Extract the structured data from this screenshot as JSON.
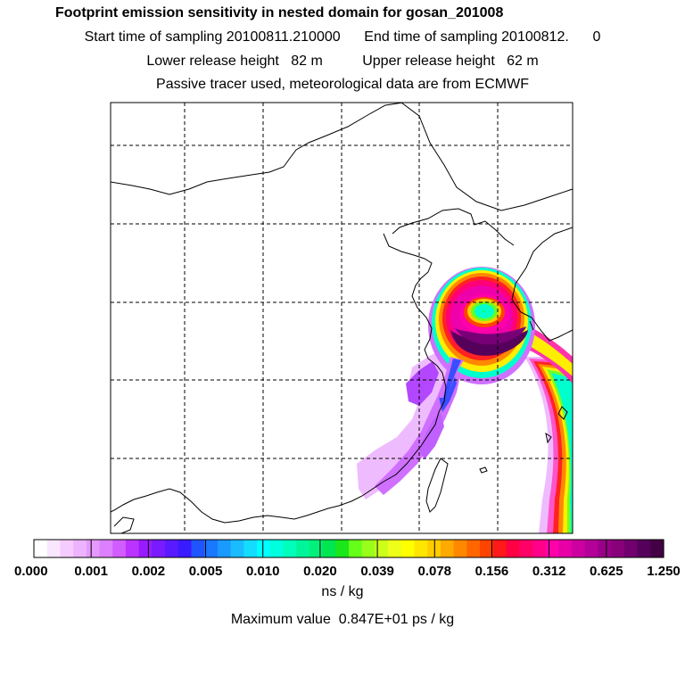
{
  "header": {
    "title": "Footprint emission sensitivity in nested domain for gosan_201008",
    "sampling": "Start time of sampling 20100811.210000      End time of sampling 20100812.      0",
    "release": "Lower release height   82 m          Upper release height   62 m",
    "tracer": "Passive tracer used, meteorological data are from ECMWF"
  },
  "colorbar": {
    "tick_labels": [
      "0.000",
      "0.001",
      "0.002",
      "0.005",
      "0.010",
      "0.020",
      "0.039",
      "0.078",
      "0.156",
      "0.312",
      "0.625",
      "1.250"
    ],
    "colors": [
      "#ffffff",
      "#fbe6ff",
      "#f5ccff",
      "#eeb3ff",
      "#e599ff",
      "#dc80ff",
      "#d15cff",
      "#bb33ff",
      "#9a1aff",
      "#7a1aff",
      "#5a1aff",
      "#3a1aff",
      "#1f55ff",
      "#1a77ff",
      "#1a99ff",
      "#1abbff",
      "#14dcff",
      "#00ffff",
      "#00ffdd",
      "#00ffbb",
      "#00f59a",
      "#00f07a",
      "#00e64f",
      "#1ae61a",
      "#66ff1a",
      "#99ff1a",
      "#ccff1a",
      "#eeff1a",
      "#ffff00",
      "#ffe600",
      "#ffcc00",
      "#ffaa00",
      "#ff8800",
      "#ff6600",
      "#ff4400",
      "#ff1a1a",
      "#ff0044",
      "#ff0066",
      "#ff0088",
      "#ff00aa",
      "#e600a6",
      "#cc00a0",
      "#b30099",
      "#990088",
      "#88007a",
      "#70006e",
      "#55005a",
      "#440044"
    ],
    "units": "ns / kg",
    "max_label": "Maximum value  0.847E+01 ps / kg"
  }
}
